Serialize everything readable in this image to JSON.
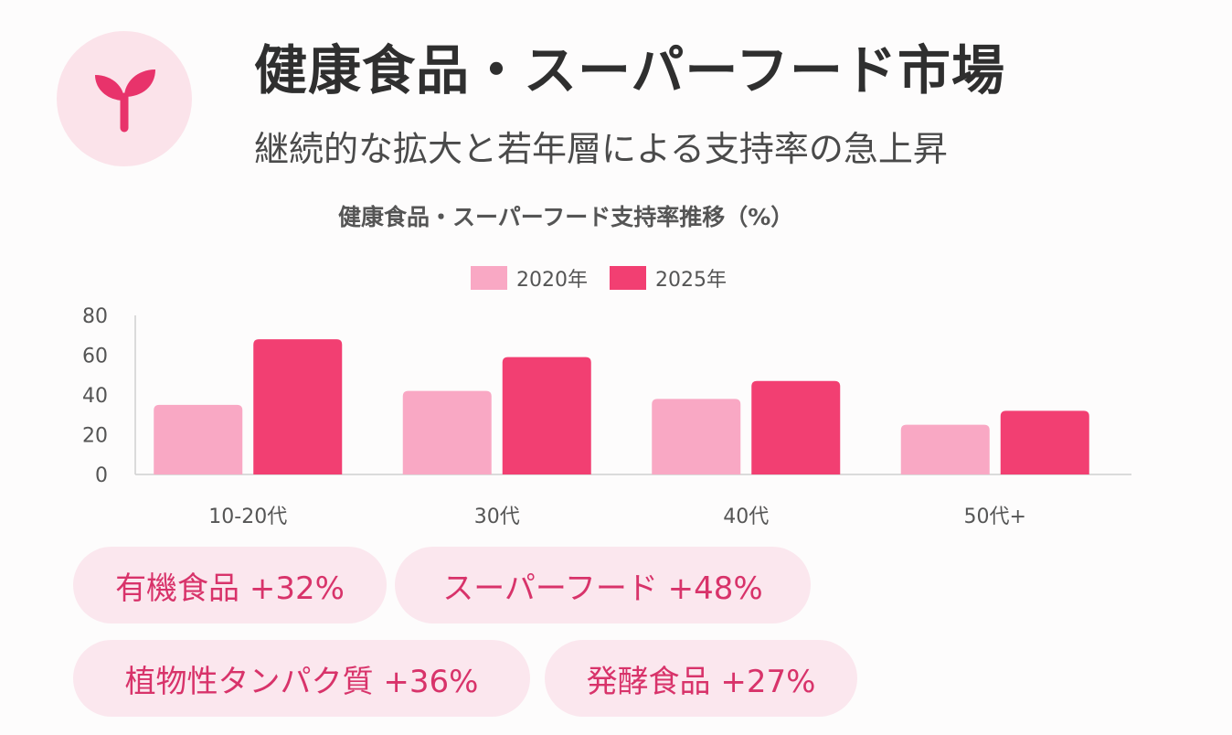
{
  "header": {
    "title": "健康食品・スーパーフード市場",
    "subtitle": "継続的な拡大と若年層による支持率の急上昇",
    "logo_icon": "sprout-icon"
  },
  "colors": {
    "series_2020": "#f9a8c4",
    "series_2025": "#f23f72",
    "tag_bg": "#fbe7ee",
    "tag_text": "#d8336a",
    "logo_bg": "#fbe3ea",
    "logo_icon": "#e8336b"
  },
  "chart_data": {
    "type": "bar",
    "title": "健康食品・スーパーフード支持率推移（%）",
    "xlabel": "",
    "ylabel": "",
    "categories": [
      "10-20代",
      "30代",
      "40代",
      "50代+"
    ],
    "series": [
      {
        "name": "2020年",
        "values": [
          35,
          42,
          38,
          25
        ]
      },
      {
        "name": "2025年",
        "values": [
          68,
          59,
          47,
          32
        ]
      }
    ],
    "ylim": [
      0,
      80
    ],
    "yticks": [
      "0",
      "20",
      "40",
      "60",
      "80"
    ],
    "grid": false,
    "legend": "top-center"
  },
  "tags": [
    {
      "label": "有機食品 +32%"
    },
    {
      "label": "スーパーフード +48%"
    },
    {
      "label": "植物性タンパク質 +36%"
    },
    {
      "label": "発酵食品 +27%"
    }
  ]
}
